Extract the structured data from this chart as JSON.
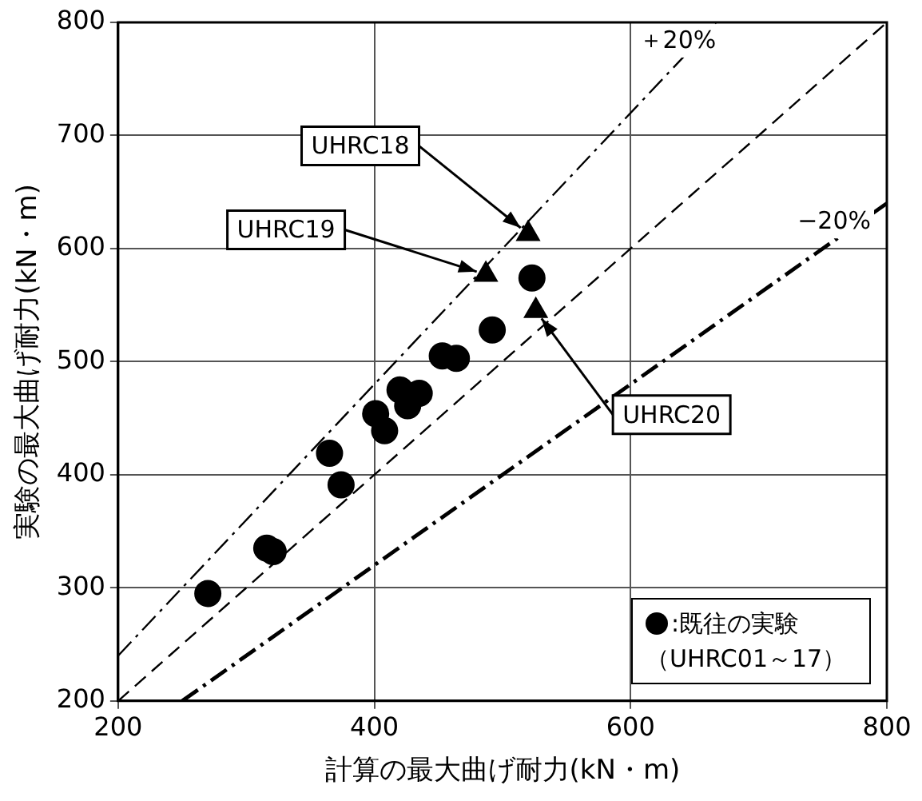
{
  "chart_data": {
    "type": "scatter",
    "xlabel": "計算の最大曲げ耐力(kN・m)",
    "ylabel": "実験の最大曲げ耐力(kN・m)",
    "xlim": [
      200,
      800
    ],
    "xticks": [
      200,
      400,
      600,
      800
    ],
    "ylim": [
      200,
      800
    ],
    "yticks": [
      200,
      300,
      400,
      500,
      600,
      700,
      800
    ],
    "grid": true,
    "legend": "bottom right",
    "series": [
      {
        "name": ":既往の実験（UHRC01～17）",
        "color": "#000000",
        "marker": "circle",
        "x": [
          523,
          492,
          453,
          464,
          420,
          435,
          426,
          401,
          408,
          365,
          374,
          316,
          321,
          270
        ],
        "values": [
          574,
          528,
          505,
          503,
          475,
          472,
          461,
          454,
          439,
          419,
          391,
          335,
          332,
          295
        ]
      },
      {
        "color": "#000000",
        "marker": "triangle",
        "x": [
          520,
          487,
          526
        ],
        "values": [
          613,
          577,
          545
        ]
      },
      {
        "type": "line",
        "color": "#000000",
        "line_style": "dashed",
        "marker": "none",
        "x": [
          200,
          800
        ],
        "values": [
          200,
          800
        ]
      },
      {
        "type": "line",
        "name": "＋20%",
        "color": "#000000",
        "line_style": "dashdot",
        "marker": "none",
        "x": [
          200,
          666.7
        ],
        "values": [
          240,
          800
        ]
      },
      {
        "type": "line",
        "name": "−20%",
        "color": "#000000",
        "line_style": "dashdot",
        "marker": "none",
        "x": [
          250,
          800
        ],
        "values": [
          200,
          640
        ]
      }
    ],
    "annotations": [
      {
        "text": "UHRC18",
        "x": 520,
        "y": 613
      },
      {
        "text": "UHRC19",
        "x": 487,
        "y": 577
      },
      {
        "text": "UHRC20",
        "x": 526,
        "y": 545
      }
    ]
  }
}
